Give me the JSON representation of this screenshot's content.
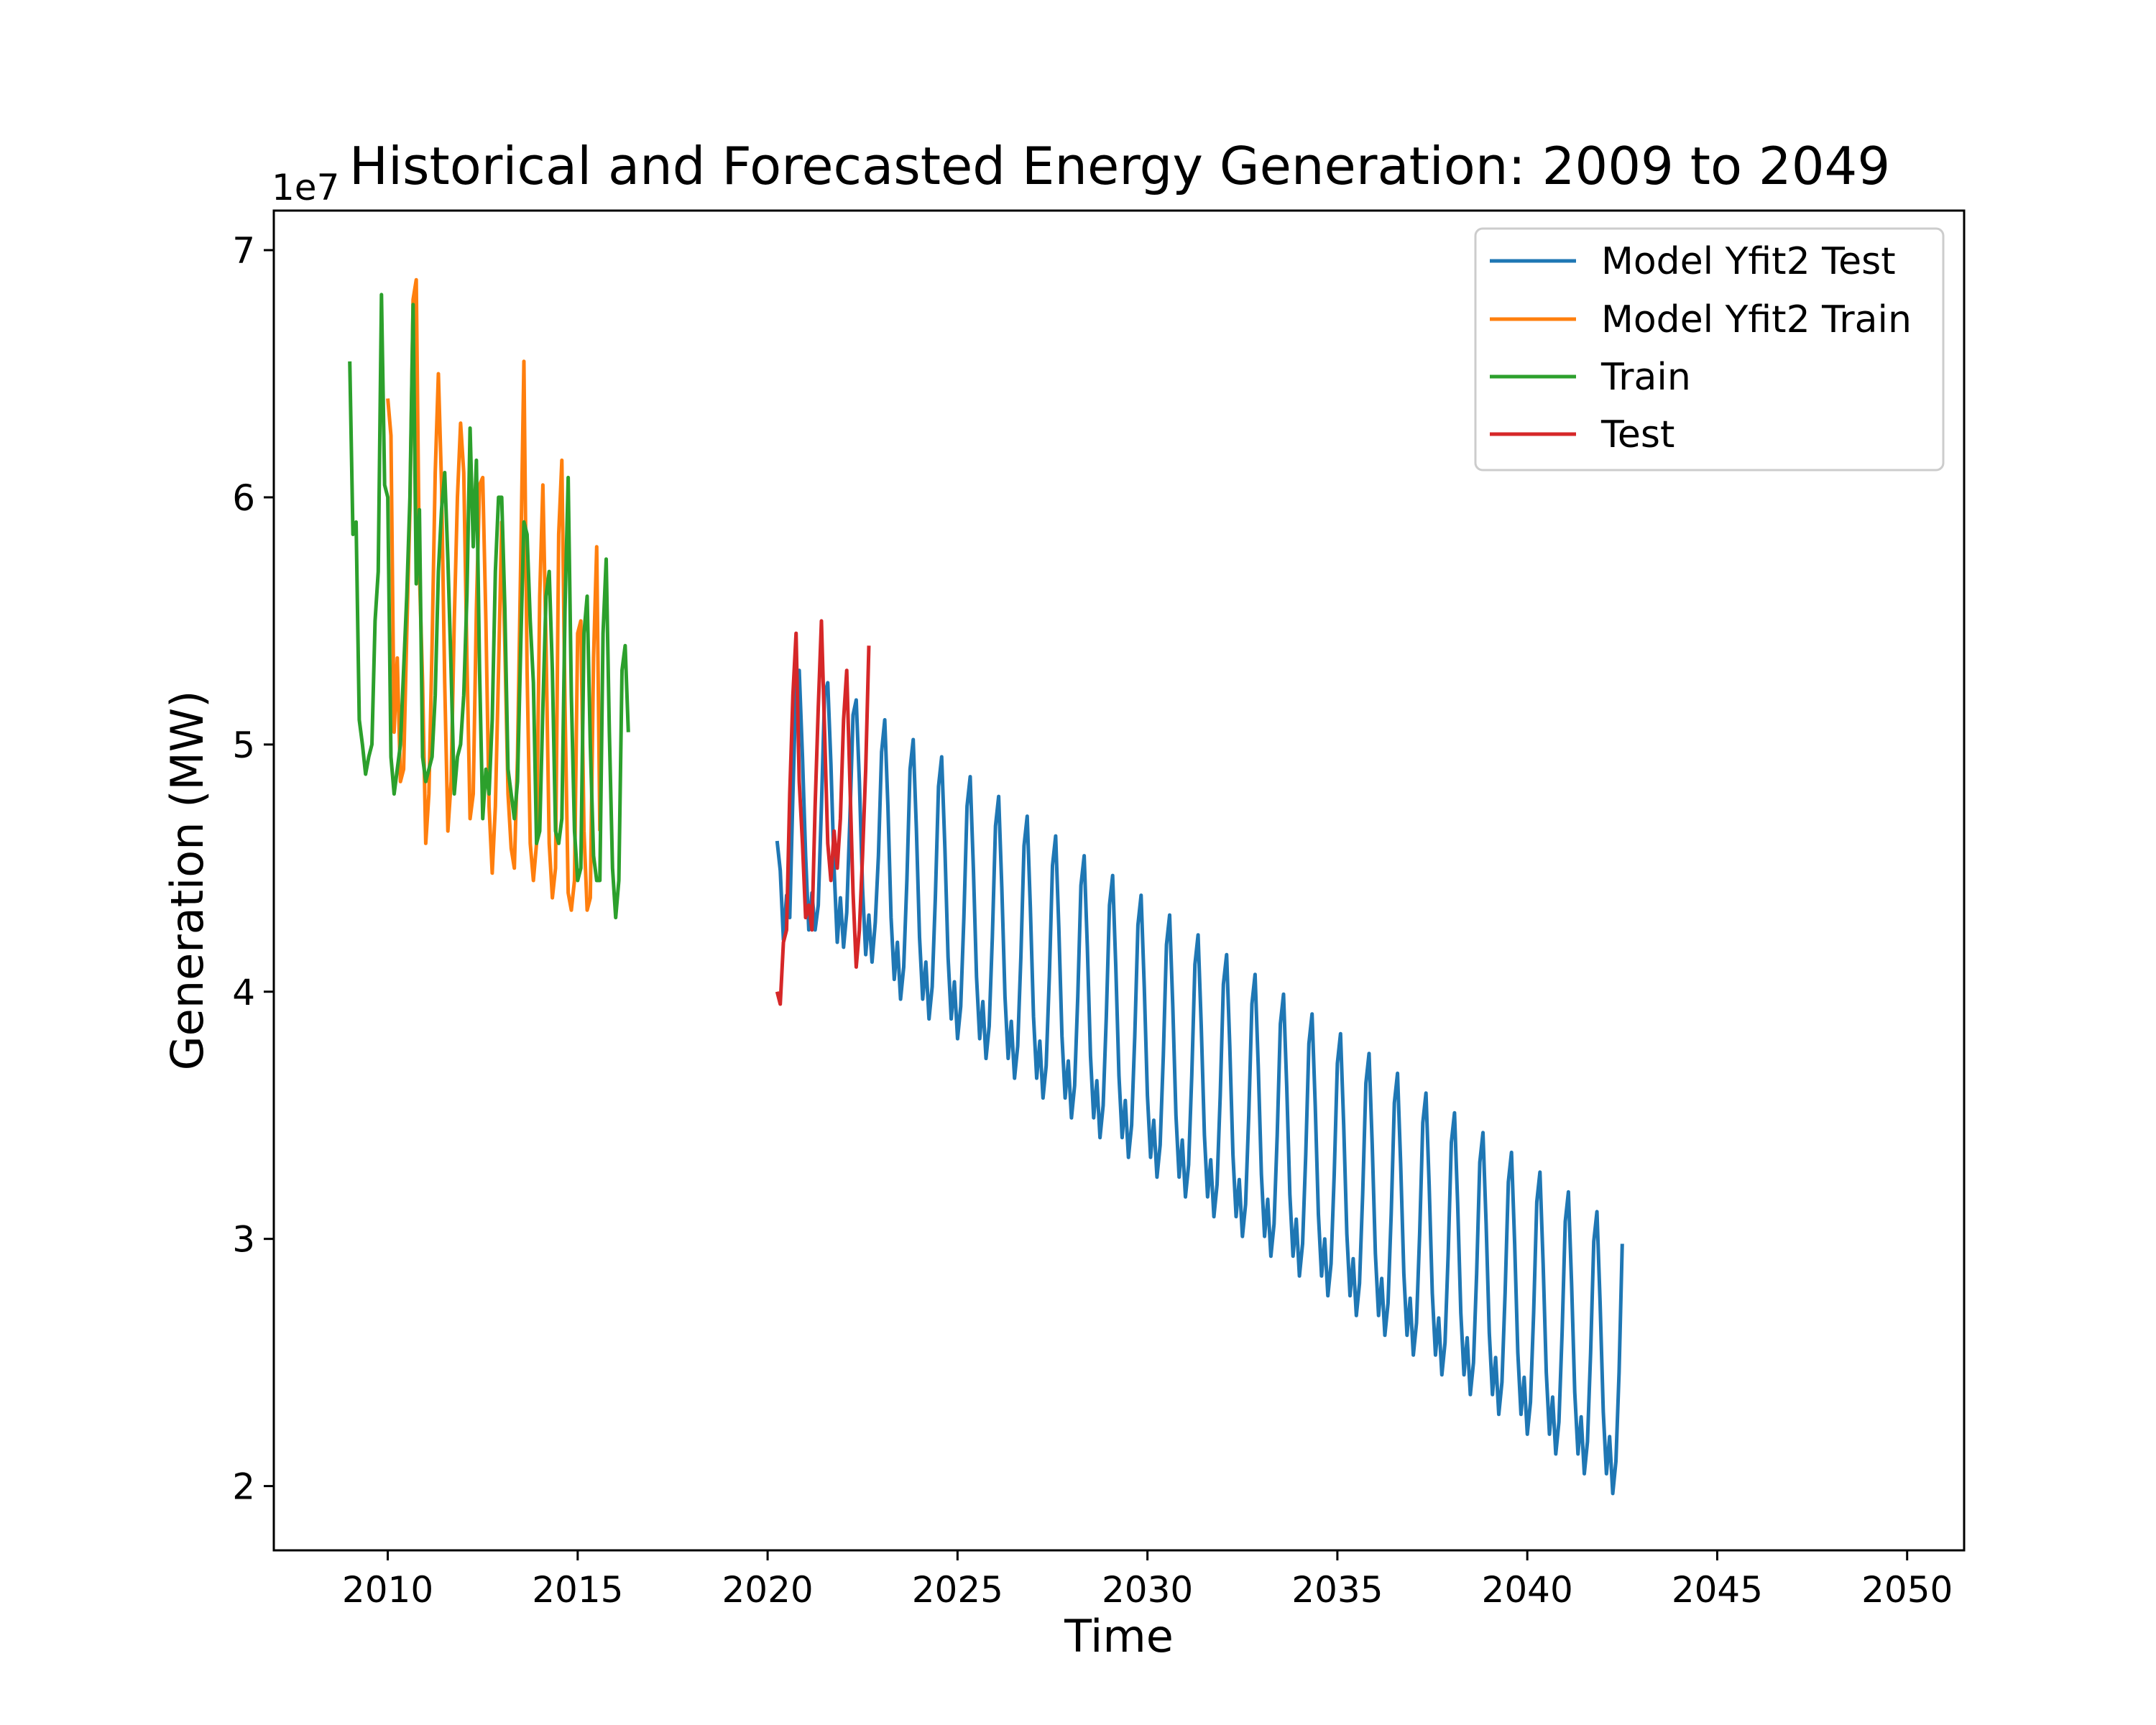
{
  "chart_data": {
    "type": "line",
    "title": "Historical and Forecasted Energy Generation: 2009 to 2049",
    "xlabel": "Time",
    "ylabel": "Generation (MW)",
    "y_offset_label": "1e7",
    "xlim": [
      2007.0,
      2051.5
    ],
    "ylim": [
      1.74,
      7.16
    ],
    "x_ticks": [
      2010,
      2015,
      2020,
      2025,
      2030,
      2035,
      2040,
      2045,
      2050
    ],
    "y_ticks": [
      2,
      3,
      4,
      5,
      6,
      7
    ],
    "x_tick_labels": [
      "2010",
      "2015",
      "2020",
      "2025",
      "2030",
      "2035",
      "2040",
      "2045",
      "2050"
    ],
    "y_tick_labels": [
      "2",
      "3",
      "4",
      "5",
      "6",
      "7"
    ],
    "y_units_note": "values in units of 1e7 MW",
    "grid": false,
    "legend_position": "top-right",
    "series": [
      {
        "name": "Model Yfit2 Test",
        "color": "#1f77b4",
        "x_start": 2020.25,
        "step": 0.0833333,
        "values": [
          4.61,
          4.49,
          4.21,
          4.39,
          4.3,
          4.8,
          5.25,
          5.3,
          4.95,
          4.55,
          4.25,
          4.4,
          4.25,
          4.35,
          4.75,
          5.2,
          5.25,
          4.92,
          4.5,
          4.2,
          4.38,
          4.18,
          4.32,
          4.7,
          5.12,
          5.18,
          4.85,
          4.42,
          4.15,
          4.31,
          4.12,
          4.28,
          4.55,
          4.97,
          5.1,
          4.75,
          4.3,
          4.05,
          4.2,
          3.97,
          4.1,
          4.45,
          4.9,
          5.02,
          4.66,
          4.22,
          3.97,
          4.12,
          3.89,
          4.02,
          4.38,
          4.83,
          4.95,
          4.58,
          4.14,
          3.89,
          4.04,
          3.81,
          3.94,
          4.3,
          4.75,
          4.87,
          4.5,
          4.06,
          3.81,
          3.96,
          3.73,
          3.86,
          4.22,
          4.67,
          4.79,
          4.42,
          3.98,
          3.73,
          3.88,
          3.65,
          3.78,
          4.14,
          4.59,
          4.71,
          4.34,
          3.9,
          3.65,
          3.8,
          3.57,
          3.7,
          4.06,
          4.51,
          4.63,
          4.26,
          3.82,
          3.57,
          3.72,
          3.49,
          3.62,
          3.98,
          4.43,
          4.55,
          4.18,
          3.74,
          3.49,
          3.64,
          3.41,
          3.54,
          3.9,
          4.35,
          4.47,
          4.1,
          3.66,
          3.41,
          3.56,
          3.33,
          3.46,
          3.82,
          4.27,
          4.39,
          4.02,
          3.58,
          3.33,
          3.48,
          3.25,
          3.38,
          3.74,
          4.19,
          4.31,
          3.94,
          3.5,
          3.25,
          3.4,
          3.17,
          3.3,
          3.66,
          4.11,
          4.23,
          3.86,
          3.42,
          3.17,
          3.32,
          3.09,
          3.22,
          3.58,
          4.03,
          4.15,
          3.78,
          3.34,
          3.09,
          3.24,
          3.01,
          3.14,
          3.5,
          3.95,
          4.07,
          3.7,
          3.26,
          3.01,
          3.16,
          2.93,
          3.06,
          3.42,
          3.87,
          3.99,
          3.62,
          3.18,
          2.93,
          3.08,
          2.85,
          2.98,
          3.34,
          3.79,
          3.91,
          3.54,
          3.1,
          2.85,
          3.0,
          2.77,
          2.9,
          3.26,
          3.71,
          3.83,
          3.46,
          3.02,
          2.77,
          2.92,
          2.69,
          2.82,
          3.18,
          3.63,
          3.75,
          3.38,
          2.94,
          2.69,
          2.84,
          2.61,
          2.74,
          3.1,
          3.55,
          3.67,
          3.3,
          2.86,
          2.61,
          2.76,
          2.53,
          2.66,
          3.02,
          3.47,
          3.59,
          3.22,
          2.78,
          2.53,
          2.68,
          2.45,
          2.58,
          2.94,
          3.39,
          3.51,
          3.14,
          2.7,
          2.45,
          2.6,
          2.37,
          2.5,
          2.86,
          3.31,
          3.43,
          3.06,
          2.62,
          2.37,
          2.52,
          2.29,
          2.42,
          2.78,
          3.23,
          3.35,
          2.98,
          2.54,
          2.29,
          2.44,
          2.21,
          2.34,
          2.7,
          3.15,
          3.27,
          2.9,
          2.46,
          2.21,
          2.36,
          2.13,
          2.26,
          2.62,
          3.07,
          3.19,
          2.82,
          2.38,
          2.13,
          2.28,
          2.05,
          2.18,
          2.54,
          2.99,
          3.11,
          2.74,
          2.3,
          2.05,
          2.2,
          1.97,
          2.1,
          2.46,
          2.98
        ]
      },
      {
        "name": "Model Yfit2 Train",
        "color": "#ff7f0e",
        "x_start": 2010.0,
        "step": 0.0833333,
        "values": [
          6.4,
          6.25,
          5.05,
          5.35,
          4.85,
          4.9,
          5.45,
          5.95,
          6.8,
          6.88,
          5.7,
          5.25,
          4.6,
          4.8,
          5.4,
          6.1,
          6.5,
          6.05,
          5.25,
          4.65,
          4.85,
          5.5,
          6.0,
          6.3,
          6.1,
          5.35,
          4.7,
          4.8,
          5.55,
          6.05,
          6.08,
          5.5,
          4.75,
          4.48,
          4.75,
          5.3,
          5.9,
          5.4,
          4.8,
          4.58,
          4.5,
          4.95,
          5.75,
          6.55,
          5.3,
          4.6,
          4.45,
          4.6,
          5.6,
          6.05,
          5.4,
          4.6,
          4.38,
          4.5,
          5.85,
          6.15,
          5.15,
          4.4,
          4.33,
          4.45,
          5.45,
          5.5,
          4.65,
          4.33,
          4.38,
          5.35,
          5.8,
          4.65
        ]
      },
      {
        "name": "Train",
        "color": "#2ca02c",
        "x_start": 2009.0,
        "step": 0.0833333,
        "values": [
          6.55,
          5.85,
          5.9,
          5.1,
          5.0,
          4.88,
          4.95,
          5.0,
          5.5,
          5.7,
          6.82,
          6.05,
          6.0,
          4.95,
          4.8,
          4.9,
          5.0,
          5.3,
          5.6,
          6.0,
          6.78,
          5.65,
          5.95,
          4.95,
          4.85,
          4.9,
          4.95,
          5.2,
          5.7,
          5.95,
          6.1,
          5.75,
          5.3,
          4.8,
          4.95,
          5.0,
          5.2,
          5.6,
          6.28,
          5.8,
          6.15,
          5.3,
          4.7,
          4.9,
          4.8,
          5.1,
          5.7,
          6.0,
          6.0,
          5.55,
          4.9,
          4.8,
          4.7,
          4.85,
          5.4,
          5.9,
          5.85,
          5.5,
          5.25,
          4.6,
          4.65,
          5.15,
          5.6,
          5.7,
          5.3,
          4.65,
          4.6,
          4.7,
          5.55,
          6.08,
          5.2,
          4.65,
          4.45,
          4.5,
          5.45,
          5.6,
          5.0,
          4.55,
          4.45,
          4.45,
          5.45,
          5.75,
          5.05,
          4.5,
          4.3,
          4.45,
          5.3,
          5.4,
          5.05
        ]
      },
      {
        "name": "Test",
        "color": "#d62728",
        "x_start": 2020.25,
        "step": 0.0833333,
        "values": [
          4.0,
          3.95,
          4.2,
          4.25,
          4.8,
          5.2,
          5.45,
          4.85,
          4.6,
          4.3,
          4.35,
          4.25,
          4.75,
          5.15,
          5.5,
          5.05,
          4.6,
          4.45,
          4.65,
          4.5,
          4.7,
          5.1,
          5.3,
          4.85,
          4.4,
          4.1,
          4.25,
          4.55,
          4.9,
          5.4
        ]
      }
    ]
  }
}
